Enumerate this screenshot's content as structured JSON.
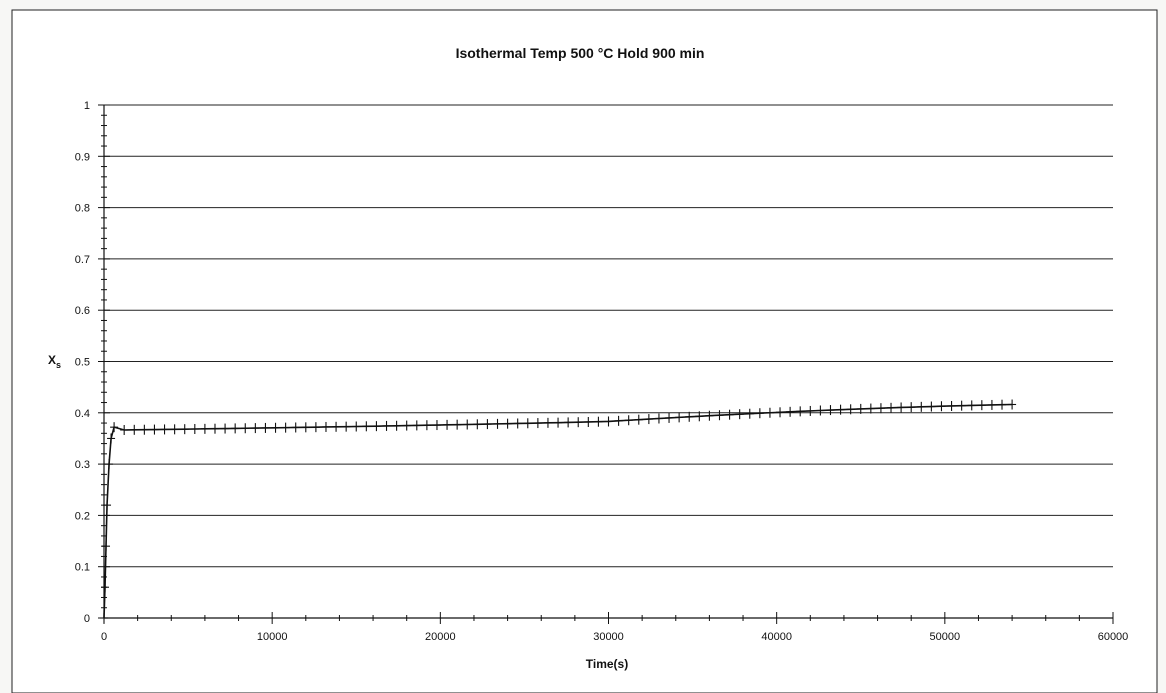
{
  "chart_data": {
    "type": "line",
    "title": "Isothermal Temp 500 °C Hold 900 min",
    "xlabel": "Time(s)",
    "ylabel": "X",
    "ylabel_subscript": "s",
    "xlim": [
      0,
      60000
    ],
    "ylim": [
      0,
      1
    ],
    "x_ticks": [
      0,
      10000,
      20000,
      30000,
      40000,
      50000,
      60000
    ],
    "y_ticks": [
      0,
      0.1,
      0.2,
      0.3,
      0.4,
      0.5,
      0.6,
      0.7,
      0.8,
      0.9,
      1
    ],
    "x_tick_labels": [
      "0",
      "10000",
      "20000",
      "30000",
      "40000",
      "50000",
      "60000"
    ],
    "y_tick_labels": [
      "0",
      "0.1",
      "0.2",
      "0.3",
      "0.4",
      "0.5",
      "0.6",
      "0.7",
      "0.8",
      "0.9",
      "1"
    ],
    "grid": "horizontal",
    "legend": "none",
    "colors": {
      "line": "#111111",
      "grid": "#222222",
      "background": "#ffffff"
    },
    "series": [
      {
        "marker": "plus",
        "x": [
          0,
          60,
          120,
          180,
          300,
          420,
          600,
          1200,
          1800,
          2400,
          3000,
          3600,
          4200,
          4800,
          5400,
          6000,
          6600,
          7200,
          7800,
          8400,
          9000,
          9600,
          10200,
          10800,
          11400,
          12000,
          12600,
          13200,
          13800,
          14400,
          15000,
          15600,
          16200,
          16800,
          17400,
          18000,
          18600,
          19200,
          19800,
          20400,
          21000,
          21600,
          22200,
          22800,
          23400,
          24000,
          24600,
          25200,
          25800,
          26400,
          27000,
          27600,
          28200,
          28800,
          29400,
          30000,
          30600,
          31200,
          31800,
          32400,
          33000,
          33600,
          34200,
          34800,
          35400,
          36000,
          36600,
          37200,
          37800,
          38400,
          39000,
          39600,
          40200,
          40800,
          41400,
          42000,
          42600,
          43200,
          43800,
          44400,
          45000,
          45600,
          46200,
          46800,
          47400,
          48000,
          48600,
          49200,
          49800,
          50400,
          51000,
          51600,
          52200,
          52800,
          53400,
          54000
        ],
        "y": [
          0,
          0.06,
          0.14,
          0.22,
          0.3,
          0.35,
          0.372,
          0.3665,
          0.3668,
          0.367,
          0.3673,
          0.3676,
          0.3678,
          0.3681,
          0.3684,
          0.3687,
          0.369,
          0.3693,
          0.3696,
          0.3699,
          0.3702,
          0.3705,
          0.3708,
          0.3711,
          0.3714,
          0.3717,
          0.372,
          0.3724,
          0.3727,
          0.373,
          0.3733,
          0.3737,
          0.374,
          0.3744,
          0.3747,
          0.3751,
          0.3754,
          0.3758,
          0.3761,
          0.3765,
          0.3769,
          0.3772,
          0.3776,
          0.378,
          0.3784,
          0.3788,
          0.3792,
          0.3796,
          0.38,
          0.3804,
          0.3808,
          0.3813,
          0.3817,
          0.3821,
          0.3826,
          0.3831,
          0.3843,
          0.3855,
          0.3866,
          0.3878,
          0.3889,
          0.39,
          0.3911,
          0.3922,
          0.3932,
          0.3943,
          0.3953,
          0.3963,
          0.3973,
          0.3982,
          0.3992,
          0.4001,
          0.401,
          0.4019,
          0.4028,
          0.4036,
          0.4045,
          0.4053,
          0.4061,
          0.4068,
          0.4076,
          0.4083,
          0.409,
          0.4097,
          0.4104,
          0.411,
          0.4116,
          0.4122,
          0.4128,
          0.4133,
          0.4139,
          0.4144,
          0.4149,
          0.4153,
          0.4158,
          0.4162
        ]
      }
    ]
  }
}
